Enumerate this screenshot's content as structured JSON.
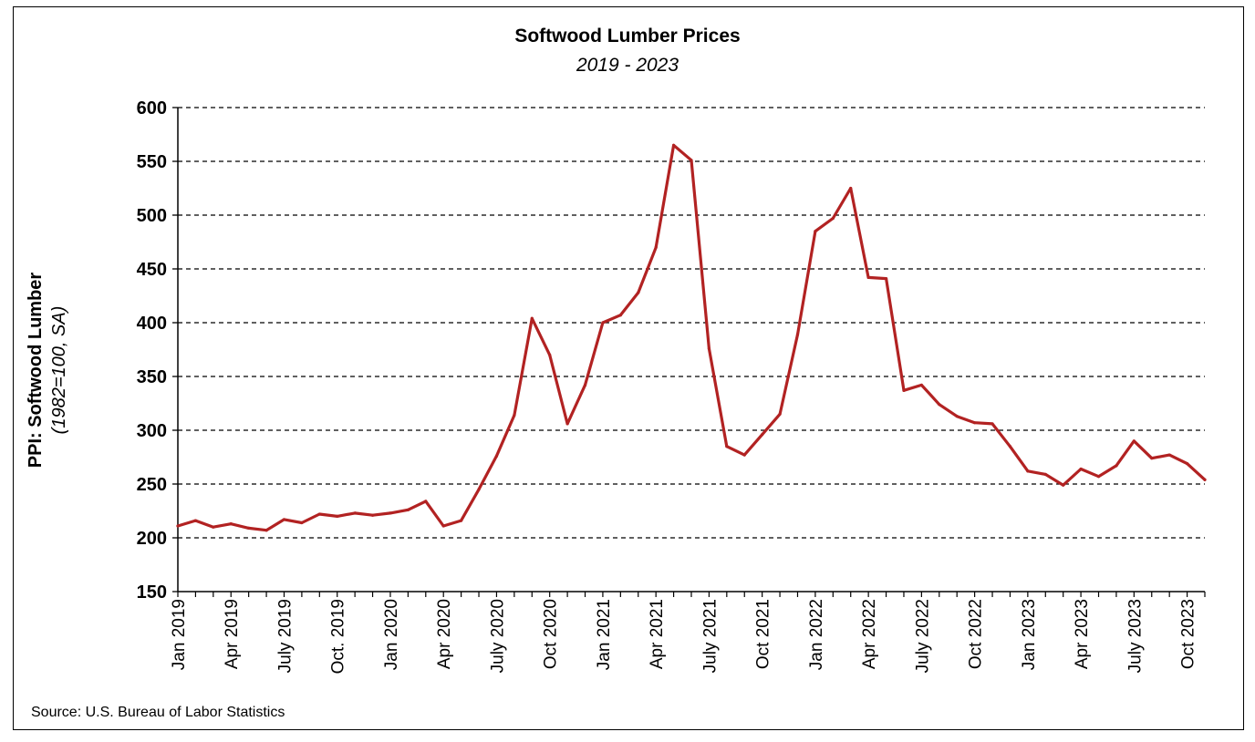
{
  "chart_data": {
    "type": "line",
    "title": "Softwood Lumber Prices",
    "subtitle": "2019 - 2023",
    "ylabel": "PPI: Softwood Lumber",
    "ylabel_sub": "(1982=100, SA)",
    "xlabel": "",
    "ylim": [
      150,
      600
    ],
    "yticks": [
      150,
      200,
      250,
      300,
      350,
      400,
      450,
      500,
      550,
      600
    ],
    "grid": "horizontal dashed",
    "x_tick_labels": [
      {
        "index": 0,
        "label": "Jan 2019"
      },
      {
        "index": 3,
        "label": "Apr 2019"
      },
      {
        "index": 6,
        "label": "July 2019"
      },
      {
        "index": 9,
        "label": "Oct. 2019"
      },
      {
        "index": 12,
        "label": "Jan 2020"
      },
      {
        "index": 15,
        "label": "Apr 2020"
      },
      {
        "index": 18,
        "label": "July 2020"
      },
      {
        "index": 21,
        "label": "Oct 2020"
      },
      {
        "index": 24,
        "label": "Jan 2021"
      },
      {
        "index": 27,
        "label": "Apr 2021"
      },
      {
        "index": 30,
        "label": "July 2021"
      },
      {
        "index": 33,
        "label": "Oct 2021"
      },
      {
        "index": 36,
        "label": "Jan 2022"
      },
      {
        "index": 39,
        "label": "Apr 2022"
      },
      {
        "index": 42,
        "label": "July 2022"
      },
      {
        "index": 45,
        "label": "Oct 2022"
      },
      {
        "index": 48,
        "label": "Jan 2023"
      },
      {
        "index": 51,
        "label": "Apr 2023"
      },
      {
        "index": 54,
        "label": "July 2023"
      },
      {
        "index": 57,
        "label": "Oct 2023"
      }
    ],
    "series": [
      {
        "color": "#b22222",
        "values": [
          211,
          216,
          210,
          213,
          209,
          207,
          217,
          214,
          222,
          220,
          223,
          221,
          223,
          226,
          234,
          211,
          216,
          245,
          276,
          314,
          404,
          370,
          306,
          342,
          400,
          407,
          428,
          470,
          565,
          551,
          376,
          285,
          277,
          296,
          315,
          389,
          485,
          497,
          525,
          442,
          441,
          337,
          342,
          324,
          313,
          307,
          306,
          285,
          262,
          259,
          249,
          264,
          257,
          267,
          290,
          274,
          277,
          269,
          254
        ]
      }
    ]
  },
  "source": "Source: U.S. Bureau of Labor Statistics"
}
